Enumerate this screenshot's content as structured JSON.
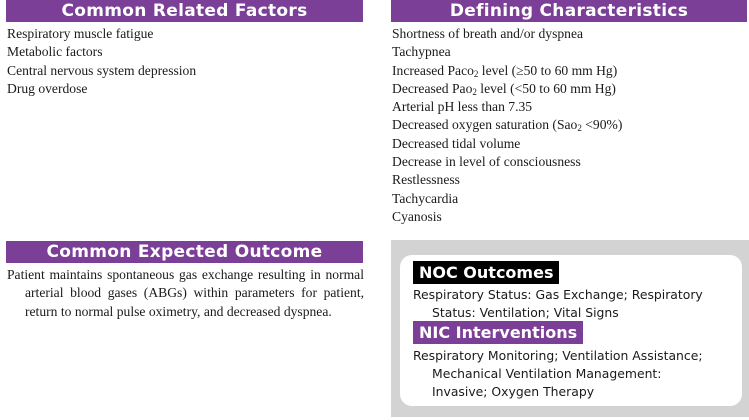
{
  "related_factors": {
    "title": "Common Related Factors",
    "items": [
      "Respiratory muscle fatigue",
      "Metabolic factors",
      "Central nervous system depression",
      "Drug overdose"
    ]
  },
  "defining_characteristics": {
    "title": "Defining Characteristics",
    "items": [
      {
        "text": "Shortness of breath and/or dyspnea"
      },
      {
        "text": "Tachypnea"
      },
      {
        "before": "Increased Paco",
        "sub": "2",
        "after": " level (≥50 to 60 mm Hg)"
      },
      {
        "before": "Decreased Pao",
        "sub": "2",
        "after": " level (<50 to 60 mm Hg)"
      },
      {
        "text": "Arterial pH less than 7.35"
      },
      {
        "before": "Decreased oxygen saturation (Sao",
        "sub": "2",
        "after": " <90%)"
      },
      {
        "text": "Decreased tidal volume"
      },
      {
        "text": "Decrease in level of consciousness"
      },
      {
        "text": "Restlessness"
      },
      {
        "text": "Tachycardia"
      },
      {
        "text": "Cyanosis"
      }
    ]
  },
  "expected_outcome": {
    "title": "Common Expected Outcome",
    "text": "Patient maintains spontaneous gas exchange resulting in normal arterial blood gases (ABGs) within parameters for patient, return to normal pulse oximetry, and decreased dyspnea."
  },
  "noc": {
    "title": "NOC Outcomes",
    "line1": "Respiratory Status: Gas Exchange; Respiratory",
    "line2": "Status: Ventilation; Vital Signs"
  },
  "nic": {
    "title": "NIC Interventions",
    "line1": "Respiratory Monitoring; Ventilation Assistance;",
    "line2": "Mechanical Ventilation Management:",
    "line3": "Invasive; Oxygen Therapy"
  },
  "colors": {
    "header_purple": "#7b3f98",
    "noc_tag": "#000000",
    "panel_gray": "#d3d3d3"
  }
}
